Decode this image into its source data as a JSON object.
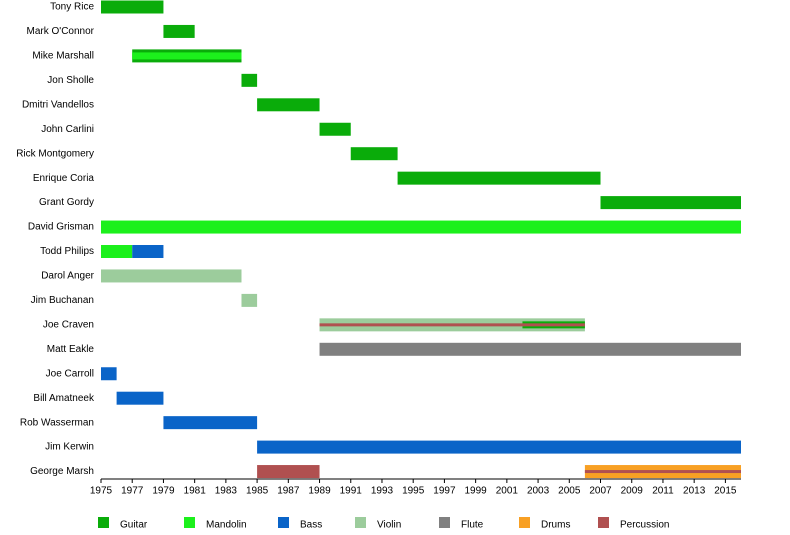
{
  "chart_data": {
    "type": "timeline",
    "instruments": [
      {
        "name": "Guitar",
        "color": "#0aac0a"
      },
      {
        "name": "Mandolin",
        "color": "#1cf01c"
      },
      {
        "name": "Bass",
        "color": "#0a64c8"
      },
      {
        "name": "Violin",
        "color": "#9ccc9c"
      },
      {
        "name": "Flute",
        "color": "#808080"
      },
      {
        "name": "Drums",
        "color": "#f8a024"
      },
      {
        "name": "Percussion",
        "color": "#b05050"
      }
    ],
    "members": [
      {
        "name": "Tony Rice",
        "segments": [
          {
            "instrument": 0,
            "start": 1975,
            "end": 1979,
            "level": 0
          }
        ]
      },
      {
        "name": "Mark O'Connor",
        "segments": [
          {
            "instrument": 0,
            "start": 1979,
            "end": 1981,
            "level": 0
          }
        ]
      },
      {
        "name": "Mike Marshall",
        "segments": [
          {
            "instrument": 0,
            "start": 1977,
            "end": 1984,
            "level": 0
          },
          {
            "instrument": 1,
            "start": 1977,
            "end": 1984,
            "level": 1
          }
        ]
      },
      {
        "name": "Jon Sholle",
        "segments": [
          {
            "instrument": 0,
            "start": 1984,
            "end": 1985,
            "level": 0
          }
        ]
      },
      {
        "name": "Dmitri Vandellos",
        "segments": [
          {
            "instrument": 0,
            "start": 1985,
            "end": 1989,
            "level": 0
          }
        ]
      },
      {
        "name": "John Carlini",
        "segments": [
          {
            "instrument": 0,
            "start": 1989,
            "end": 1991,
            "level": 0
          }
        ]
      },
      {
        "name": "Rick Montgomery",
        "segments": [
          {
            "instrument": 0,
            "start": 1991,
            "end": 1994,
            "level": 0
          }
        ]
      },
      {
        "name": "Enrique Coria",
        "segments": [
          {
            "instrument": 0,
            "start": 1994,
            "end": 2007,
            "level": 0
          }
        ]
      },
      {
        "name": "Grant Gordy",
        "segments": [
          {
            "instrument": 0,
            "start": 2007,
            "end": 2016,
            "level": 0
          }
        ]
      },
      {
        "name": "David Grisman",
        "segments": [
          {
            "instrument": 1,
            "start": 1975,
            "end": 2016,
            "level": 0
          }
        ]
      },
      {
        "name": "Todd Philips",
        "segments": [
          {
            "instrument": 1,
            "start": 1975,
            "end": 1977,
            "level": 0
          },
          {
            "instrument": 2,
            "start": 1977,
            "end": 1979,
            "level": 0
          }
        ]
      },
      {
        "name": "Darol Anger",
        "segments": [
          {
            "instrument": 3,
            "start": 1975,
            "end": 1984,
            "level": 0
          }
        ]
      },
      {
        "name": "Jim Buchanan",
        "segments": [
          {
            "instrument": 3,
            "start": 1984,
            "end": 1985,
            "level": 0
          }
        ]
      },
      {
        "name": "Joe Craven",
        "segments": [
          {
            "instrument": 3,
            "start": 1989,
            "end": 2006,
            "level": 0
          },
          {
            "instrument": 0,
            "start": 2002,
            "end": 2006,
            "level": 1
          },
          {
            "instrument": 6,
            "start": 1989,
            "end": 2006,
            "level": 2
          }
        ]
      },
      {
        "name": "Matt Eakle",
        "segments": [
          {
            "instrument": 4,
            "start": 1989,
            "end": 2016,
            "level": 0
          }
        ]
      },
      {
        "name": "Joe Carroll",
        "segments": [
          {
            "instrument": 2,
            "start": 1975,
            "end": 1976,
            "level": 0
          }
        ]
      },
      {
        "name": "Bill Amatneek",
        "segments": [
          {
            "instrument": 2,
            "start": 1976,
            "end": 1979,
            "level": 0
          }
        ]
      },
      {
        "name": "Rob Wasserman",
        "segments": [
          {
            "instrument": 2,
            "start": 1979,
            "end": 1985,
            "level": 0
          }
        ]
      },
      {
        "name": "Jim Kerwin",
        "segments": [
          {
            "instrument": 2,
            "start": 1985,
            "end": 2016,
            "level": 0
          }
        ]
      },
      {
        "name": "George Marsh",
        "segments": [
          {
            "instrument": 6,
            "start": 1985,
            "end": 1989,
            "level": 0
          },
          {
            "instrument": 5,
            "start": 2006,
            "end": 2016,
            "level": 0
          },
          {
            "instrument": 6,
            "start": 2006,
            "end": 2016,
            "level": 2
          }
        ]
      }
    ],
    "xlim": [
      1975,
      2016
    ],
    "xticks": [
      1975,
      1977,
      1979,
      1981,
      1983,
      1985,
      1987,
      1989,
      1991,
      1993,
      1995,
      1997,
      1999,
      2001,
      2003,
      2005,
      2007,
      2009,
      2011,
      2013,
      2015
    ]
  }
}
